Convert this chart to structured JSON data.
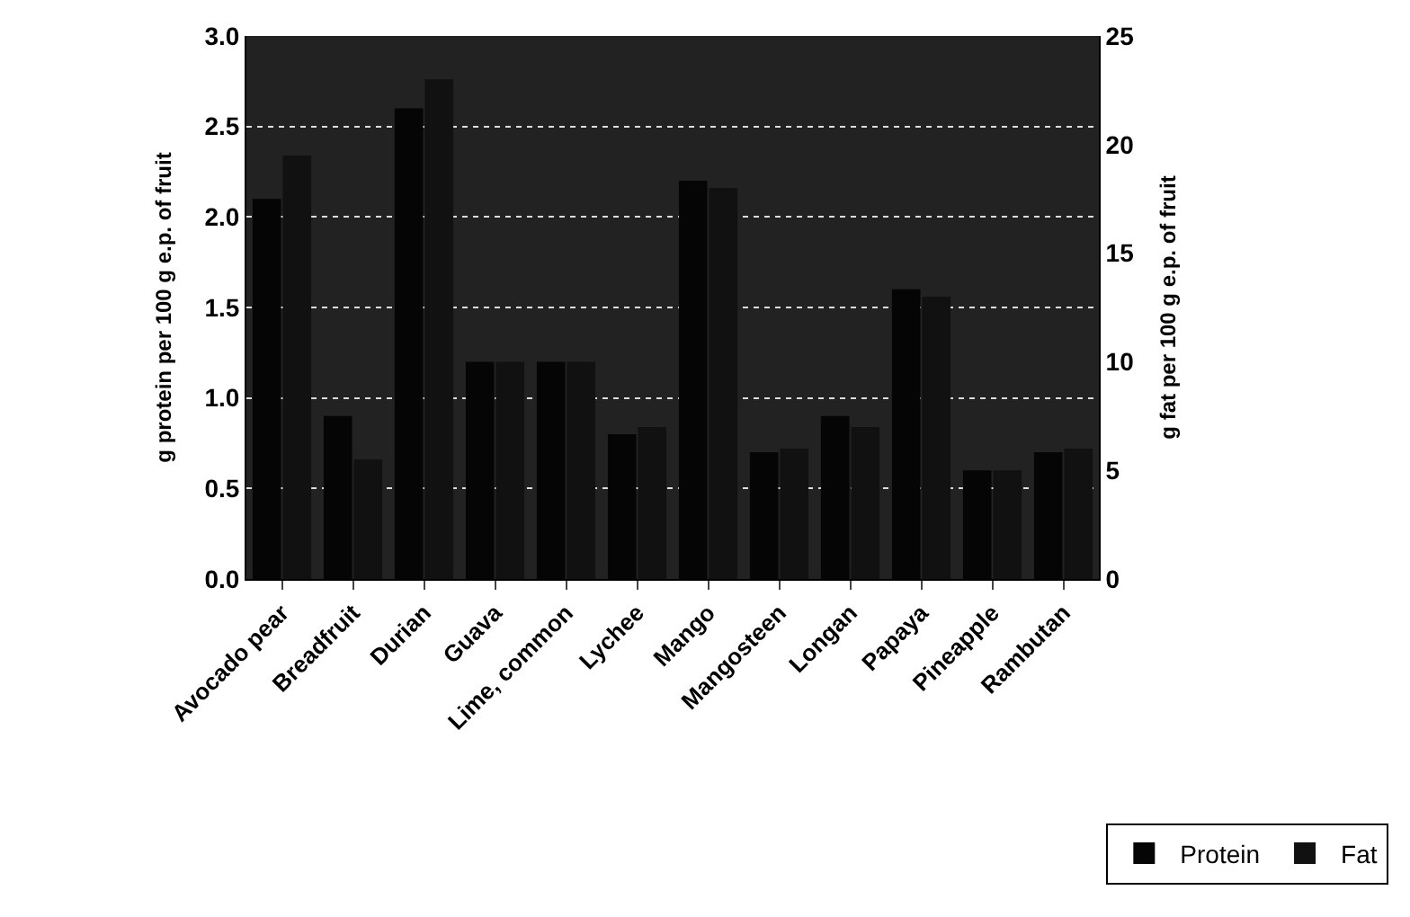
{
  "chart_data": {
    "type": "bar",
    "categories": [
      "Avocado pear",
      "Breadfruit",
      "Durian",
      "Guava",
      "Lime, common",
      "Lychee",
      "Mango",
      "Mangosteen",
      "Longan",
      "Papaya",
      "Pineapple",
      "Rambutan"
    ],
    "series": [
      {
        "name": "Protein",
        "color": "#050505",
        "values": [
          2.1,
          0.9,
          2.6,
          1.2,
          1.2,
          0.8,
          2.2,
          0.7,
          0.9,
          1.6,
          0.6,
          0.7
        ]
      },
      {
        "name": "Fat",
        "color": "#111111",
        "axis": "y2",
        "values": [
          19.5,
          5.5,
          23,
          10,
          10,
          7,
          18,
          6,
          7,
          13,
          5,
          6
        ]
      }
    ],
    "ylabel": "g protein per 100 g e.p. of fruit",
    "y2label": "g fat per 100 g e.p. of fruit",
    "ylim": [
      0,
      3
    ],
    "yticks": [
      {
        "value": 0,
        "label": "0.0"
      },
      {
        "value": 0.5,
        "label": "0.5"
      },
      {
        "value": 1,
        "label": "1.0"
      },
      {
        "value": 1.5,
        "label": "1.5"
      },
      {
        "value": 2,
        "label": "2.0"
      },
      {
        "value": 2.5,
        "label": "2.5"
      },
      {
        "value": 3,
        "label": "3.0"
      }
    ],
    "y2lim": [
      0,
      25
    ],
    "y2ticks": [
      0,
      5,
      10,
      15,
      20,
      25
    ],
    "grid": "y",
    "legend": "bottom right"
  }
}
